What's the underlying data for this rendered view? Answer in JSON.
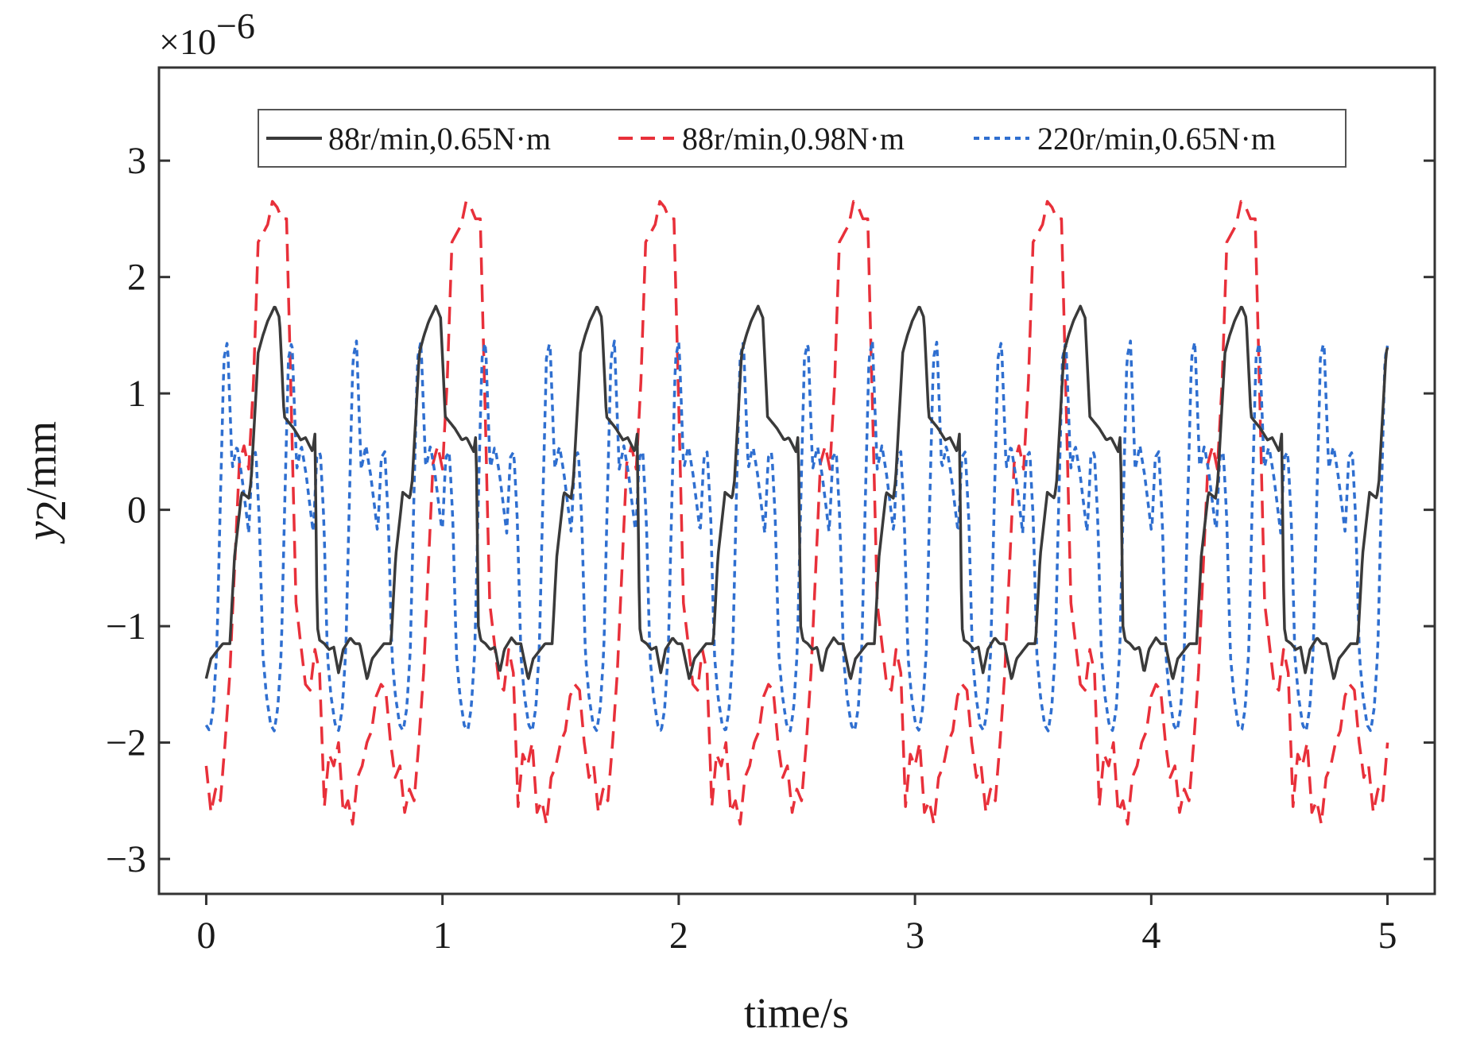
{
  "chart_data": {
    "type": "line",
    "xlabel": "time/s",
    "ylabel_main": "y",
    "ylabel_sub": "2",
    "ylabel_unit": "/mm",
    "y_multiplier_base": "×10",
    "y_multiplier_exp": "−6",
    "xlim": [
      -0.2,
      5.2
    ],
    "ylim": [
      -3.3,
      3.8
    ],
    "xticks": [
      0,
      1,
      2,
      3,
      4,
      5
    ],
    "xtick_labels": [
      "0",
      "1",
      "2",
      "3",
      "4",
      "5"
    ],
    "yticks": [
      -3,
      -2,
      -1,
      0,
      1,
      2,
      3
    ],
    "ytick_labels": [
      "−3",
      "−2",
      "−1",
      "0",
      "1",
      "2",
      "3"
    ],
    "grid": false,
    "legend_position": "top",
    "series": [
      {
        "name": "88r/min,0.65N·m",
        "color": "#3a3a3a",
        "style": "solid",
        "period": 0.682,
        "shape_t": [
          0,
          0.02,
          0.07,
          0.1,
          0.12,
          0.15,
          0.18,
          0.19,
          0.22,
          0.24,
          0.26,
          0.29,
          0.31,
          0.33,
          0.37,
          0.4,
          0.42,
          0.45,
          0.46,
          0.47,
          0.48,
          0.5,
          0.52,
          0.54,
          0.56,
          0.58,
          0.61,
          0.63,
          0.65,
          0.68
        ],
        "shape_y": [
          -1.45,
          -1.28,
          -1.15,
          -1.15,
          -0.4,
          0.15,
          0.1,
          0.25,
          1.35,
          1.5,
          1.62,
          1.75,
          1.65,
          0.8,
          0.7,
          0.6,
          0.62,
          0.5,
          0.65,
          -1.0,
          -1.12,
          -1.15,
          -1.2,
          -1.18,
          -1.4,
          -1.2,
          -1.1,
          -1.15,
          -1.15,
          -1.45
        ]
      },
      {
        "name": "88r/min,0.98N·m",
        "color": "#e8303a",
        "style": "dashed",
        "period": 0.82,
        "shape_t": [
          0,
          0.02,
          0.04,
          0.06,
          0.08,
          0.1,
          0.14,
          0.16,
          0.18,
          0.2,
          0.22,
          0.26,
          0.28,
          0.3,
          0.32,
          0.34,
          0.36,
          0.38,
          0.42,
          0.44,
          0.46,
          0.48,
          0.5,
          0.52,
          0.54,
          0.56,
          0.58,
          0.6,
          0.62,
          0.64,
          0.66,
          0.68,
          0.7,
          0.72,
          0.74,
          0.76,
          0.78,
          0.8,
          0.82
        ],
        "shape_y": [
          -2.2,
          -2.6,
          -2.4,
          -2.5,
          -2.0,
          -1.4,
          0.4,
          0.55,
          0.35,
          1.1,
          2.3,
          2.45,
          2.65,
          2.6,
          2.5,
          2.5,
          0.9,
          -0.8,
          -1.5,
          -1.55,
          -1.2,
          -1.4,
          -2.55,
          -2.1,
          -2.2,
          -2.0,
          -2.6,
          -2.5,
          -2.7,
          -2.3,
          -2.2,
          -2.0,
          -1.9,
          -1.6,
          -1.5,
          -1.55,
          -2.0,
          -2.3,
          -2.2
        ]
      },
      {
        "name": "220r/min,0.65N·m",
        "color": "#2f6fd0",
        "style": "dotted",
        "period": 0.273,
        "shape_t": [
          0,
          0.015,
          0.03,
          0.045,
          0.06,
          0.075,
          0.09,
          0.11,
          0.13,
          0.15,
          0.165,
          0.18,
          0.195,
          0.21,
          0.225,
          0.24,
          0.255,
          0.273
        ],
        "shape_y": [
          -1.85,
          -1.9,
          -1.7,
          -1.2,
          0.1,
          1.3,
          1.45,
          0.35,
          0.55,
          0.3,
          0.05,
          -0.2,
          0.45,
          0.5,
          -0.1,
          -1.25,
          -1.6,
          -1.85
        ]
      }
    ]
  }
}
